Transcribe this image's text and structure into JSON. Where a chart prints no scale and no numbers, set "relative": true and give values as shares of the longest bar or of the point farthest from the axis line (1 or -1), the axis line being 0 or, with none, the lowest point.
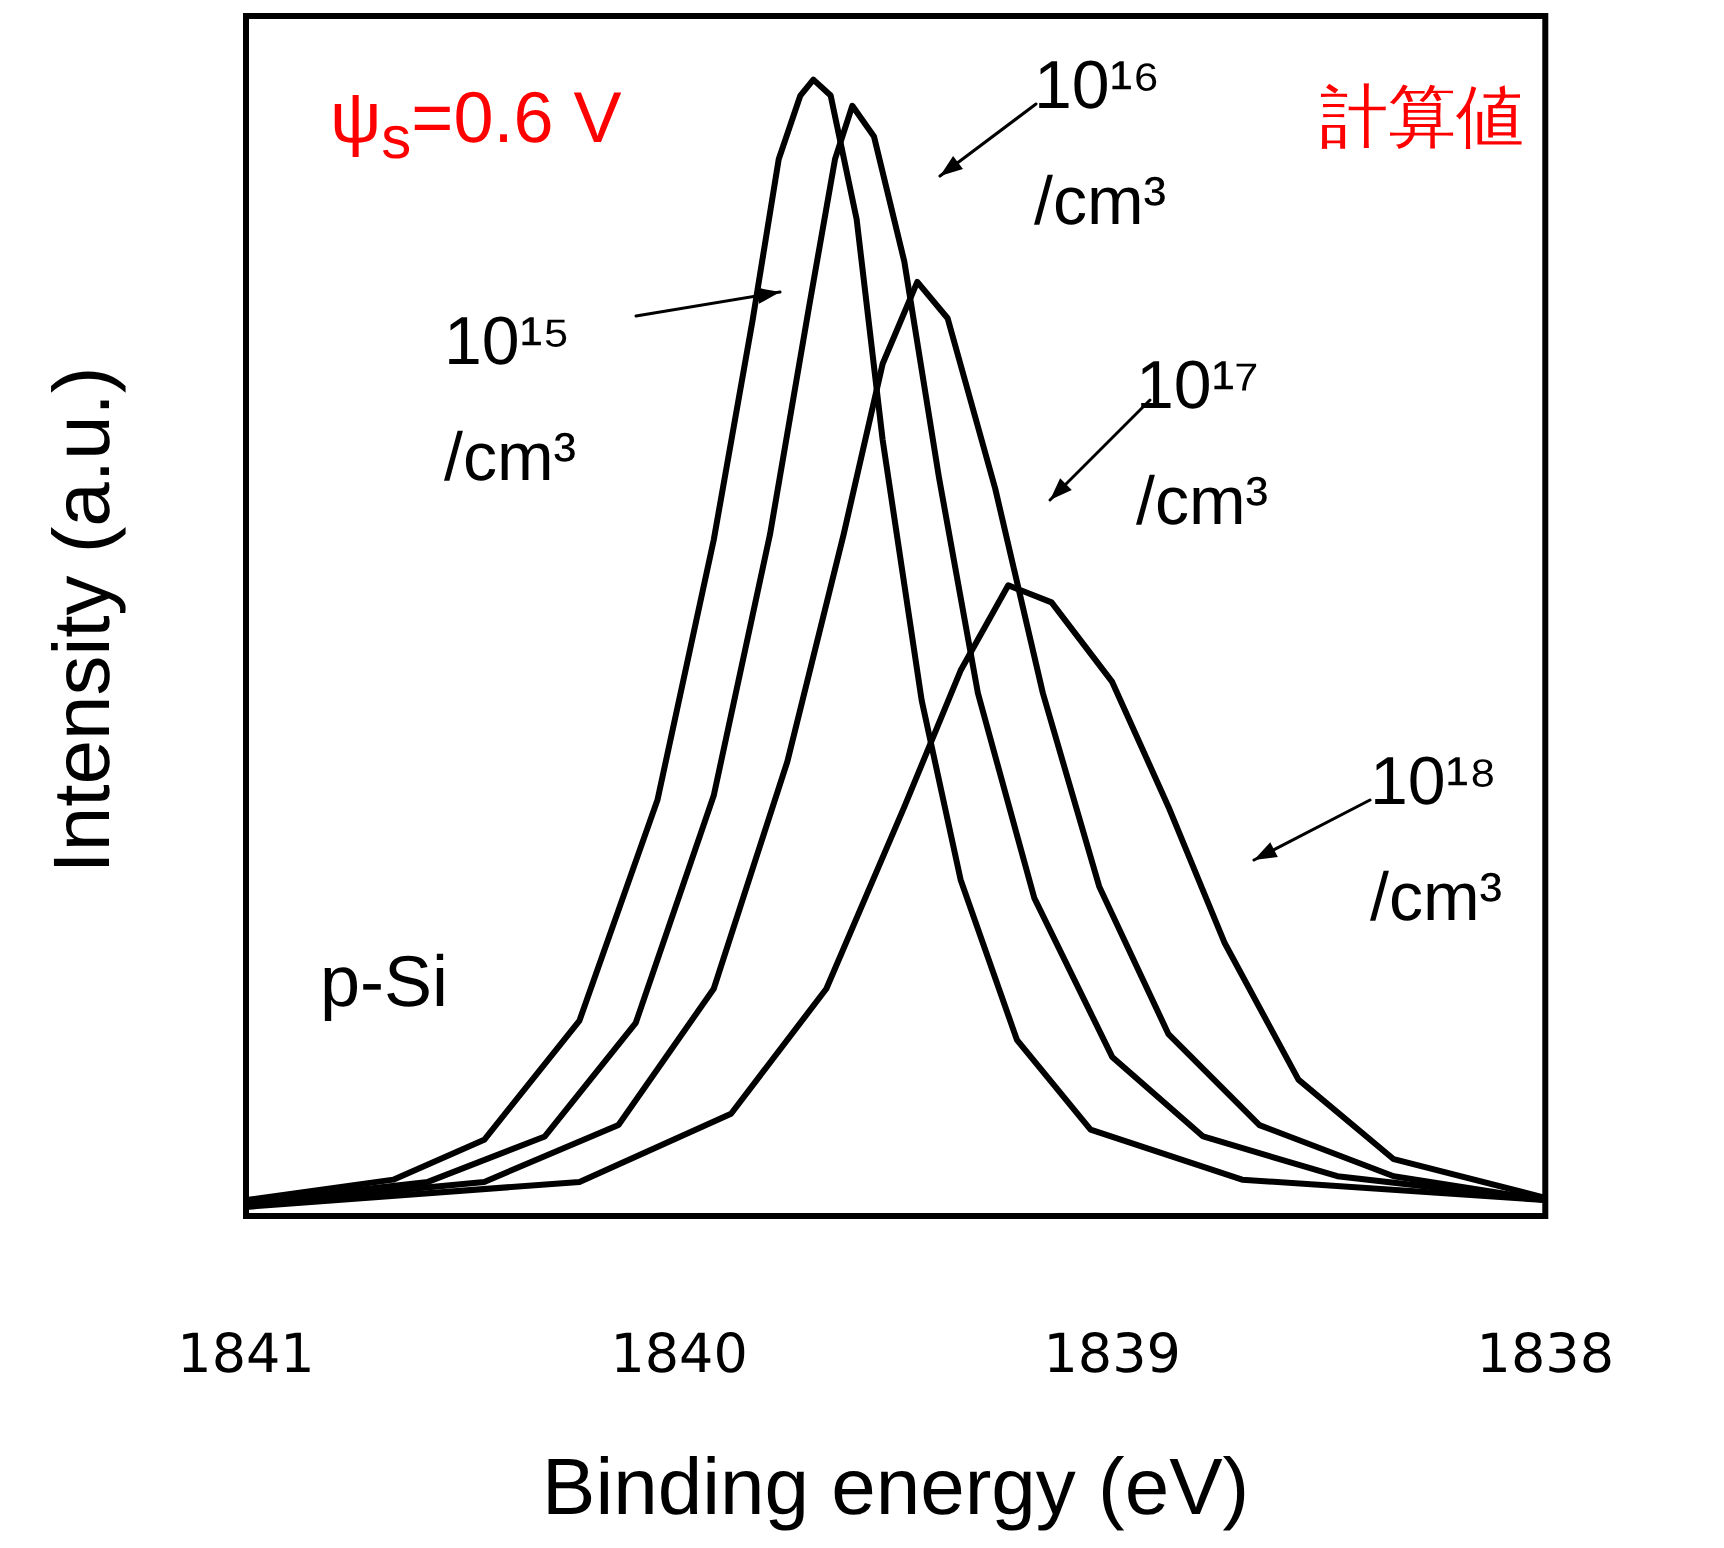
{
  "chart_data": {
    "type": "line",
    "xlabel": "Binding energy (eV)",
    "ylabel": "Intensity (a.u.)",
    "relative": true,
    "xlim": [
      1841,
      1838
    ],
    "xticks": [
      1841,
      1840,
      1839,
      1838
    ],
    "grid": false,
    "legend": "top right",
    "marker": "none",
    "line_style": "solid",
    "annotations": [
      "ψ$_{s}$=0.6 V",
      "計算値",
      "p-Si"
    ],
    "series": [
      {
        "name": "10¹⁵ /cm³",
        "color": "#000000",
        "x": [
          1841.0,
          1840.66,
          1840.45,
          1840.23,
          1840.05,
          1839.92,
          1839.83,
          1839.77,
          1839.72,
          1839.69,
          1839.65,
          1839.59,
          1839.53,
          1839.44,
          1839.35,
          1839.22,
          1839.05,
          1838.7,
          1838.0
        ],
        "values": [
          0.014,
          0.032,
          0.067,
          0.172,
          0.366,
          0.595,
          0.789,
          0.93,
          0.986,
          1,
          0.986,
          0.877,
          0.683,
          0.454,
          0.296,
          0.155,
          0.076,
          0.032,
          0.014
        ]
      },
      {
        "name": "10¹⁶ /cm³",
        "color": "#000000",
        "x": [
          1841.0,
          1840.58,
          1840.31,
          1840.1,
          1839.92,
          1839.79,
          1839.7,
          1839.64,
          1839.6,
          1839.55,
          1839.48,
          1839.4,
          1839.31,
          1839.18,
          1839.0,
          1838.79,
          1838.48,
          1838.0
        ],
        "values": [
          0.012,
          0.03,
          0.07,
          0.17,
          0.37,
          0.6,
          0.8,
          0.93,
          0.977,
          0.95,
          0.84,
          0.65,
          0.46,
          0.28,
          0.14,
          0.07,
          0.035,
          0.014
        ]
      },
      {
        "name": "10¹⁷ /cm³",
        "color": "#000000",
        "x": [
          1841.0,
          1840.45,
          1840.14,
          1839.92,
          1839.75,
          1839.62,
          1839.53,
          1839.45,
          1839.38,
          1839.27,
          1839.16,
          1839.03,
          1838.87,
          1838.66,
          1838.35,
          1838.0
        ],
        "values": [
          0.01,
          0.03,
          0.08,
          0.2,
          0.4,
          0.6,
          0.75,
          0.822,
          0.79,
          0.64,
          0.46,
          0.29,
          0.16,
          0.08,
          0.035,
          0.014
        ]
      },
      {
        "name": "10¹⁸ /cm³",
        "color": "#000000",
        "x": [
          1841.0,
          1840.23,
          1839.88,
          1839.66,
          1839.48,
          1839.35,
          1839.24,
          1839.14,
          1839.0,
          1838.87,
          1838.74,
          1838.57,
          1838.35,
          1838.0
        ],
        "values": [
          0.008,
          0.03,
          0.09,
          0.2,
          0.36,
          0.48,
          0.555,
          0.54,
          0.47,
          0.36,
          0.24,
          0.12,
          0.05,
          0.016
        ]
      }
    ]
  }
}
